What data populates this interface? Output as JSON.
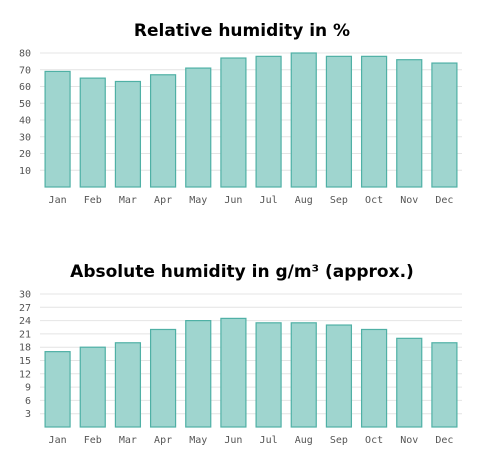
{
  "colors": {
    "bar_fill": "#9fd5cf",
    "bar_stroke": "#4fb0a5",
    "grid": "#e4e4e4"
  },
  "chart_data": [
    {
      "type": "bar",
      "title": "Relative humidity in %",
      "categories": [
        "Jan",
        "Feb",
        "Mar",
        "Apr",
        "May",
        "Jun",
        "Jul",
        "Aug",
        "Sep",
        "Oct",
        "Nov",
        "Dec"
      ],
      "values": [
        69,
        65,
        63,
        67,
        71,
        77,
        78,
        80,
        78,
        78,
        76,
        74
      ],
      "ylim": [
        0,
        80
      ],
      "yticks": [
        10,
        20,
        30,
        40,
        50,
        60,
        70,
        80
      ],
      "grid": true,
      "xlabel": "",
      "ylabel": ""
    },
    {
      "type": "bar",
      "title": "Absolute humidity in g/m³ (approx.)",
      "categories": [
        "Jan",
        "Feb",
        "Mar",
        "Apr",
        "May",
        "Jun",
        "Jul",
        "Aug",
        "Sep",
        "Oct",
        "Nov",
        "Dec"
      ],
      "values": [
        17,
        18,
        19,
        22,
        24,
        24.5,
        23.5,
        23.5,
        23,
        22,
        20,
        19
      ],
      "ylim": [
        0,
        30
      ],
      "yticks": [
        3,
        6,
        9,
        12,
        15,
        18,
        21,
        24,
        27,
        30
      ],
      "grid": true,
      "xlabel": "",
      "ylabel": ""
    }
  ]
}
